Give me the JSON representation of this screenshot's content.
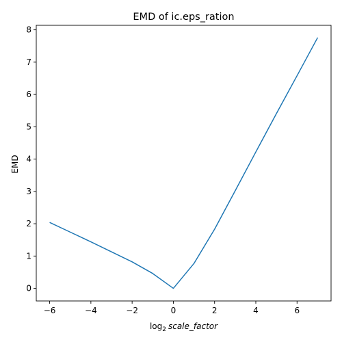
{
  "chart_data": {
    "type": "line",
    "title": "EMD of ic.eps_ration",
    "xlabel": {
      "prefix": "log",
      "subscript": "2",
      "italic": "scale_factor"
    },
    "ylabel": "EMD",
    "xlim": [
      -6.65,
      7.65
    ],
    "ylim": [
      -0.39,
      8.14
    ],
    "xticks": [
      -6,
      -4,
      -2,
      0,
      2,
      4,
      6
    ],
    "yticks": [
      0,
      1,
      2,
      3,
      4,
      5,
      6,
      7,
      8
    ],
    "grid": false,
    "series": [
      {
        "color": "#1f77b4",
        "x": [
          -6,
          -5,
          -4,
          -3,
          -2,
          -1,
          0,
          1,
          2,
          3,
          4,
          5,
          6,
          7
        ],
        "y": [
          2.04,
          1.74,
          1.44,
          1.13,
          0.82,
          0.46,
          0.0,
          0.77,
          1.83,
          3.02,
          4.22,
          5.41,
          6.58,
          7.76
        ]
      }
    ]
  }
}
